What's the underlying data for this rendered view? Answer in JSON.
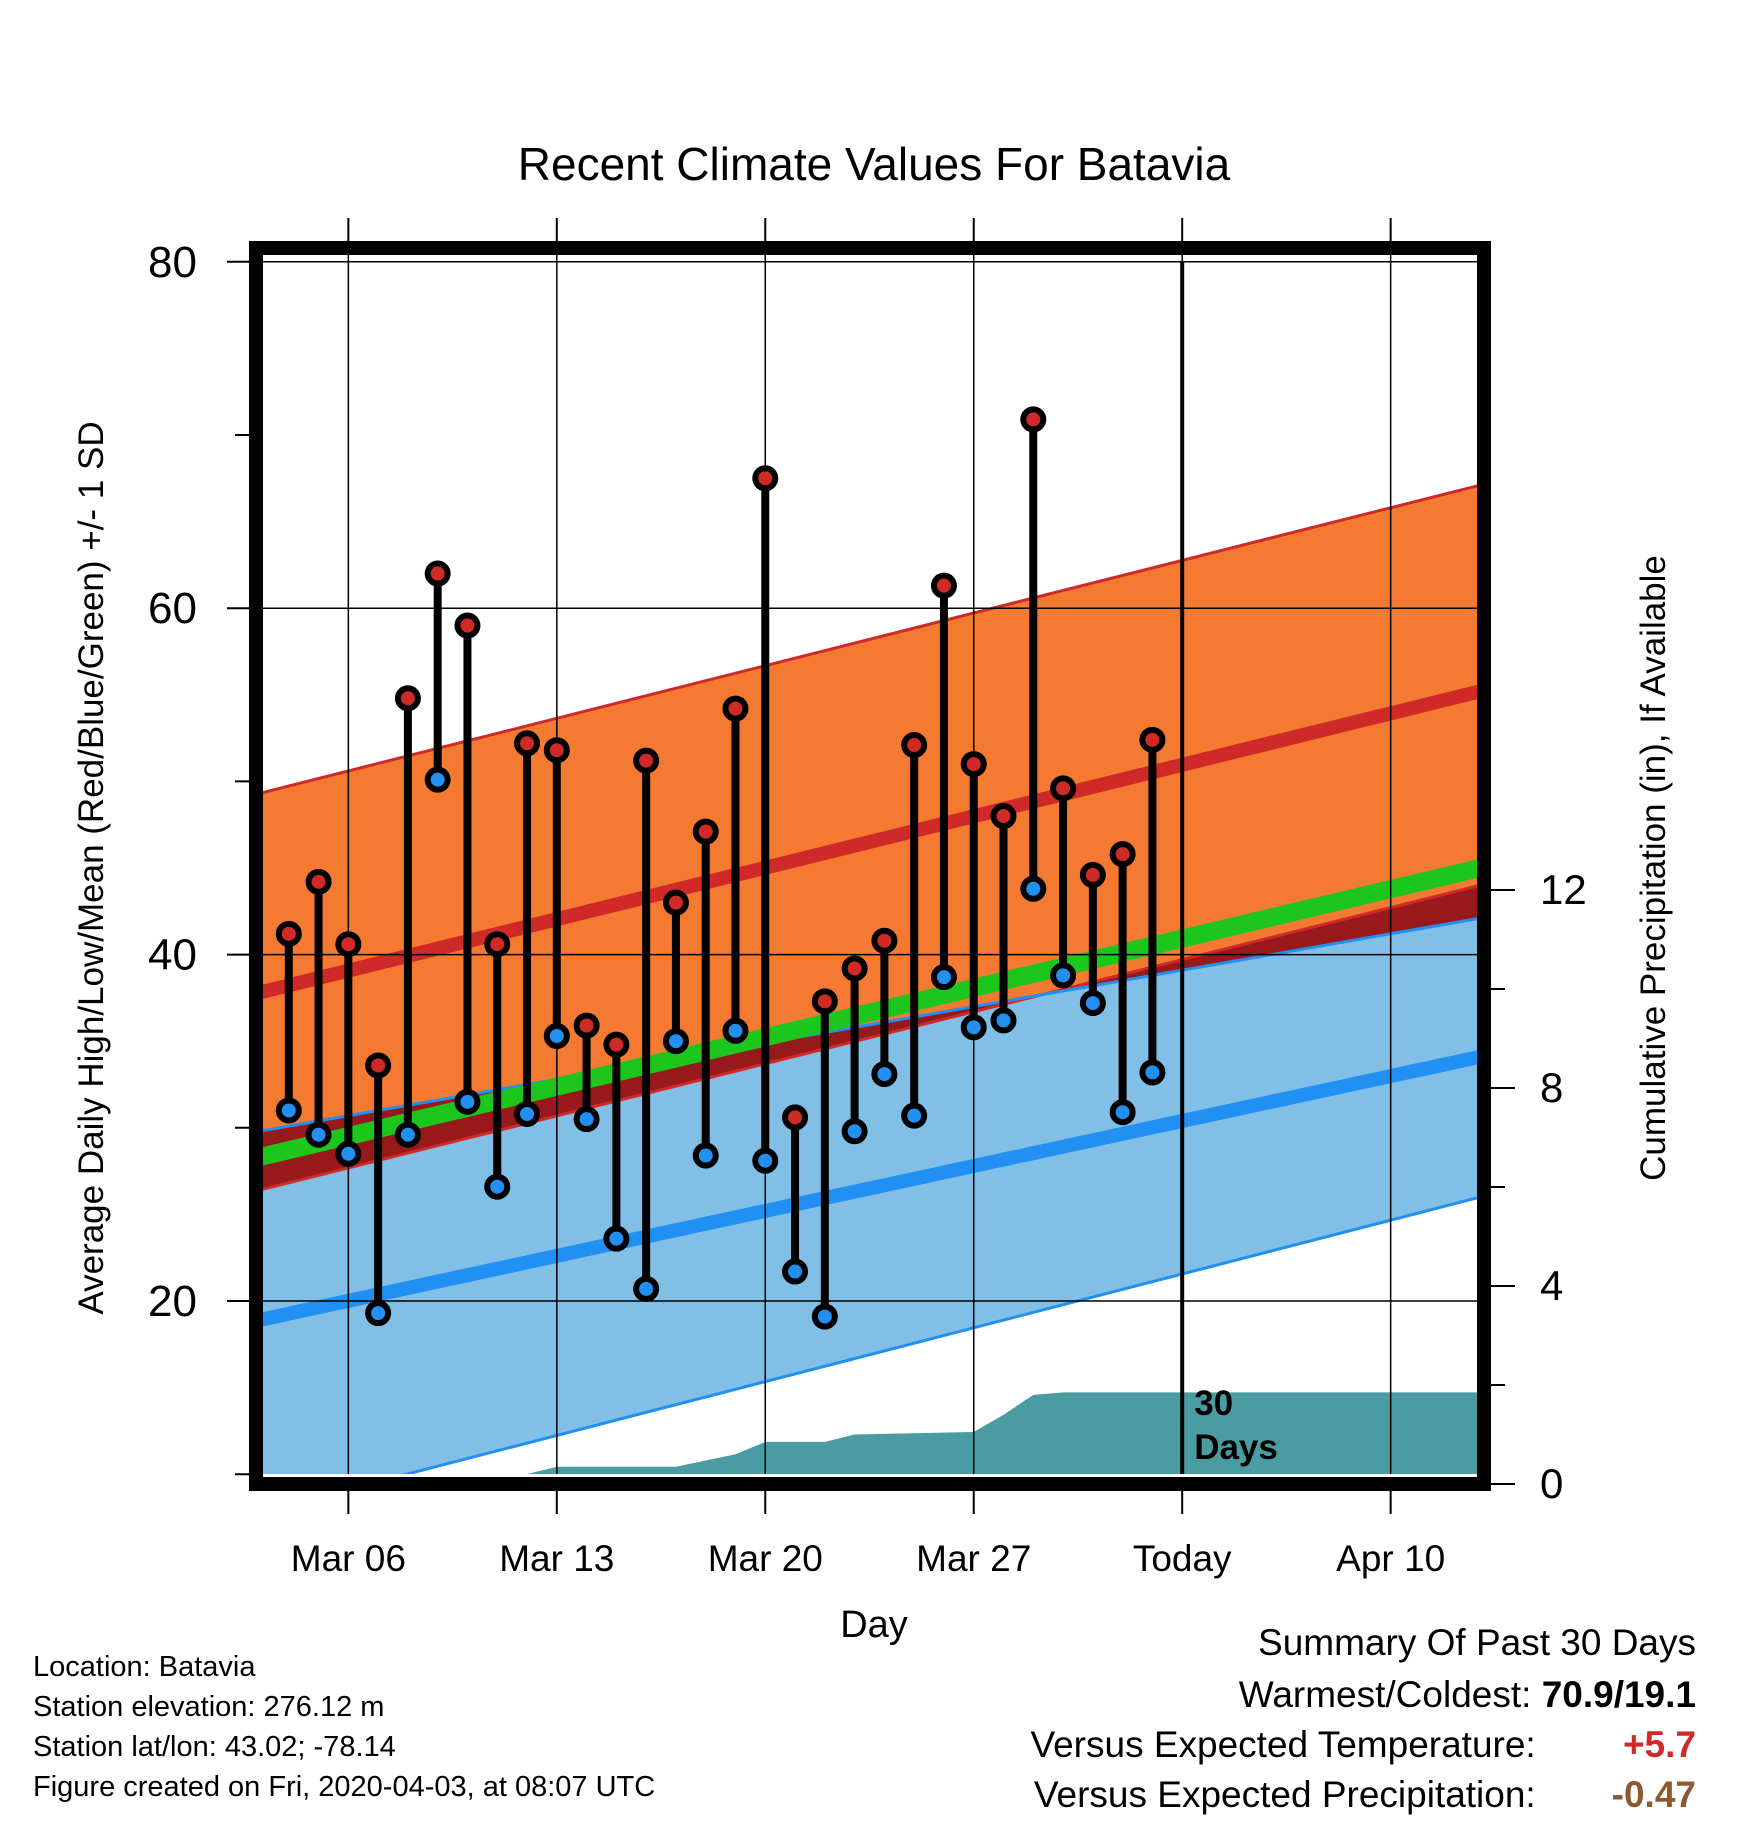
{
  "chart_data": {
    "type": "line",
    "title": "Recent Climate Values For Batavia",
    "xlabel": "Day",
    "ylabel": "Average Daily High/Low/Mean (Red/Blue/Green) +/- 1 SD",
    "ylabel_right": "Cumulative Precipitation (in), If Available",
    "ylim": [
      9,
      80
    ],
    "ylim_right": [
      0,
      25
    ],
    "grid": true,
    "x_range": [
      "2020-03-03",
      "2020-04-13"
    ],
    "x_ticks": [
      {
        "date": "2020-03-06",
        "label": "Mar 06"
      },
      {
        "date": "2020-03-13",
        "label": "Mar 13"
      },
      {
        "date": "2020-03-20",
        "label": "Mar 20"
      },
      {
        "date": "2020-03-27",
        "label": "Mar 27"
      },
      {
        "date": "2020-04-03",
        "label": "Today"
      },
      {
        "date": "2020-04-10",
        "label": "Apr 10"
      }
    ],
    "y_ticks": [
      20,
      40,
      60,
      80
    ],
    "y_ticks_right": [
      0,
      4,
      8,
      12
    ],
    "today": "2020-04-03",
    "today_label": [
      "30",
      "Days"
    ],
    "daily_high": [
      {
        "x": "2020-03-04",
        "y": 41.2
      },
      {
        "x": "2020-03-05",
        "y": 44.2
      },
      {
        "x": "2020-03-06",
        "y": 40.6
      },
      {
        "x": "2020-03-07",
        "y": 33.6
      },
      {
        "x": "2020-03-08",
        "y": 54.8
      },
      {
        "x": "2020-03-09",
        "y": 62.0
      },
      {
        "x": "2020-03-10",
        "y": 59.0
      },
      {
        "x": "2020-03-11",
        "y": 40.6
      },
      {
        "x": "2020-03-12",
        "y": 52.2
      },
      {
        "x": "2020-03-13",
        "y": 51.8
      },
      {
        "x": "2020-03-14",
        "y": 35.9
      },
      {
        "x": "2020-03-15",
        "y": 34.8
      },
      {
        "x": "2020-03-16",
        "y": 51.2
      },
      {
        "x": "2020-03-17",
        "y": 43.0
      },
      {
        "x": "2020-03-18",
        "y": 47.1
      },
      {
        "x": "2020-03-19",
        "y": 54.2
      },
      {
        "x": "2020-03-20",
        "y": 67.5
      },
      {
        "x": "2020-03-21",
        "y": 30.6
      },
      {
        "x": "2020-03-22",
        "y": 37.3
      },
      {
        "x": "2020-03-23",
        "y": 39.2
      },
      {
        "x": "2020-03-24",
        "y": 40.8
      },
      {
        "x": "2020-03-25",
        "y": 52.1
      },
      {
        "x": "2020-03-26",
        "y": 61.3
      },
      {
        "x": "2020-03-27",
        "y": 51.0
      },
      {
        "x": "2020-03-28",
        "y": 48.0
      },
      {
        "x": "2020-03-29",
        "y": 70.9
      },
      {
        "x": "2020-03-30",
        "y": 49.6
      },
      {
        "x": "2020-03-31",
        "y": 44.6
      },
      {
        "x": "2020-04-01",
        "y": 45.8
      },
      {
        "x": "2020-04-02",
        "y": 52.4
      }
    ],
    "daily_low": [
      {
        "x": "2020-03-04",
        "y": 31.0
      },
      {
        "x": "2020-03-05",
        "y": 29.6
      },
      {
        "x": "2020-03-06",
        "y": 28.5
      },
      {
        "x": "2020-03-07",
        "y": 19.3
      },
      {
        "x": "2020-03-08",
        "y": 29.6
      },
      {
        "x": "2020-03-09",
        "y": 50.1
      },
      {
        "x": "2020-03-10",
        "y": 31.5
      },
      {
        "x": "2020-03-11",
        "y": 26.6
      },
      {
        "x": "2020-03-12",
        "y": 30.8
      },
      {
        "x": "2020-03-13",
        "y": 35.3
      },
      {
        "x": "2020-03-14",
        "y": 30.5
      },
      {
        "x": "2020-03-15",
        "y": 23.6
      },
      {
        "x": "2020-03-16",
        "y": 20.7
      },
      {
        "x": "2020-03-17",
        "y": 35.0
      },
      {
        "x": "2020-03-18",
        "y": 28.4
      },
      {
        "x": "2020-03-19",
        "y": 35.6
      },
      {
        "x": "2020-03-20",
        "y": 28.1
      },
      {
        "x": "2020-03-21",
        "y": 21.7
      },
      {
        "x": "2020-03-22",
        "y": 19.1
      },
      {
        "x": "2020-03-23",
        "y": 29.8
      },
      {
        "x": "2020-03-24",
        "y": 33.1
      },
      {
        "x": "2020-03-25",
        "y": 30.7
      },
      {
        "x": "2020-03-26",
        "y": 38.7
      },
      {
        "x": "2020-03-27",
        "y": 35.8
      },
      {
        "x": "2020-03-28",
        "y": 36.2
      },
      {
        "x": "2020-03-29",
        "y": 43.8
      },
      {
        "x": "2020-03-30",
        "y": 38.8
      },
      {
        "x": "2020-03-31",
        "y": 37.2
      },
      {
        "x": "2020-04-01",
        "y": 30.9
      },
      {
        "x": "2020-04-02",
        "y": 33.2
      }
    ],
    "normal_high": [
      {
        "x": "2020-03-03",
        "y": 37.8
      },
      {
        "x": "2020-04-13",
        "y": 55.2
      }
    ],
    "normal_high_sd_upper": [
      {
        "x": "2020-03-03",
        "y": 49.3
      },
      {
        "x": "2020-04-13",
        "y": 67.1
      }
    ],
    "normal_high_sd_lower": [
      {
        "x": "2020-03-03",
        "y": 26.4
      },
      {
        "x": "2020-04-13",
        "y": 44.0
      }
    ],
    "normal_mean": [
      {
        "x": "2020-03-03",
        "y": 28.3
      },
      {
        "x": "2020-04-13",
        "y": 45.0
      }
    ],
    "normal_low": [
      {
        "x": "2020-03-03",
        "y": 18.9
      },
      {
        "x": "2020-04-13",
        "y": 34.1
      }
    ],
    "normal_low_sd_upper": [
      {
        "x": "2020-03-03",
        "y": 29.8
      },
      {
        "x": "2020-04-13",
        "y": 42.1
      }
    ],
    "normal_low_sd_lower": [
      {
        "x": "2020-03-03",
        "y": 7.8
      },
      {
        "x": "2020-04-13",
        "y": 26.0
      }
    ],
    "cumulative_precip": [
      {
        "x": "2020-03-03",
        "y": 0.0
      },
      {
        "x": "2020-03-07",
        "y": 0.0
      },
      {
        "x": "2020-03-10",
        "y": 0.2
      },
      {
        "x": "2020-03-12",
        "y": 0.2
      },
      {
        "x": "2020-03-13",
        "y": 0.35
      },
      {
        "x": "2020-03-17",
        "y": 0.35
      },
      {
        "x": "2020-03-19",
        "y": 0.6
      },
      {
        "x": "2020-03-20",
        "y": 0.85
      },
      {
        "x": "2020-03-22",
        "y": 0.85
      },
      {
        "x": "2020-03-23",
        "y": 1.0
      },
      {
        "x": "2020-03-27",
        "y": 1.05
      },
      {
        "x": "2020-03-28",
        "y": 1.4
      },
      {
        "x": "2020-03-29",
        "y": 1.8
      },
      {
        "x": "2020-03-30",
        "y": 1.85
      },
      {
        "x": "2020-04-13",
        "y": 1.85
      }
    ]
  },
  "footer": {
    "location": "Location: Batavia",
    "elevation": "Station elevation: 276.12 m",
    "latlon": "Station lat/lon: 43.02; -78.14",
    "created": "Figure created on Fri, 2020-04-03, at 08:07 UTC"
  },
  "summary": {
    "title": "Summary Of Past 30 Days",
    "warmest_label": "Warmest/Coldest:",
    "warmest_value": "70.9/19.1",
    "temp_label": "Versus Expected Temperature:",
    "temp_value": "+5.7",
    "precip_label": "Versus Expected Precipitation:",
    "precip_value": "-0.47"
  },
  "colors": {
    "high_band": "#f47a32",
    "high_line": "#cf2a27",
    "low_band": "#82bfe6",
    "low_line": "#2190f2",
    "mean_line": "#1cc61c",
    "overlap_band": "#98191c",
    "precip": "#4a9ca3",
    "high_marker": "#cf2a27",
    "low_marker": "#2190f2",
    "temp_anomaly": "#cf2a27",
    "precip_anomaly": "#8d5a2f"
  }
}
